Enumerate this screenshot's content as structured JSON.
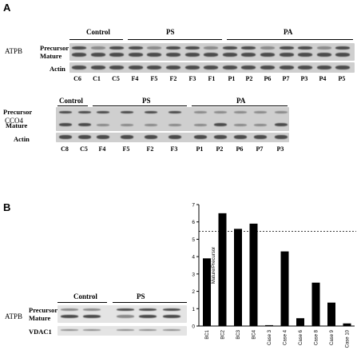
{
  "panels": {
    "a": {
      "letter": "A",
      "atpb": {
        "gene": "ATPB",
        "row_labels": {
          "precursor": "Precursor",
          "mature": "Mature",
          "actin": "Actin"
        },
        "groups": {
          "control": "Control",
          "ps": "PS",
          "pa": "PA"
        },
        "lanes": [
          "C6",
          "C1",
          "C5",
          "F4",
          "F5",
          "F2",
          "F3",
          "F1",
          "P1",
          "P2",
          "P6",
          "P7",
          "P3",
          "P4",
          "P5"
        ]
      },
      "cco4": {
        "gene": "CCO4",
        "row_labels": {
          "precursor": "Precursor",
          "mature": "Mature",
          "actin": "Actin"
        },
        "groups": {
          "control": "Control",
          "ps": "PS",
          "pa": "PA"
        },
        "lanes": [
          "C8",
          "C5",
          "F4",
          "F5",
          "F2",
          "F3",
          "P1",
          "P2",
          "P6",
          "P7",
          "P3"
        ]
      }
    },
    "b": {
      "letter": "B",
      "blot": {
        "gene": "ATPB",
        "row_labels": {
          "precursor": "Precursor",
          "mature": "Mature",
          "vdac": "VDAC1"
        },
        "groups": {
          "control": "Control",
          "ps": "PS"
        }
      }
    }
  },
  "chart_data": {
    "type": "bar",
    "ylabel": "Mature/Precursor",
    "categories": [
      "BC1",
      "BC2",
      "BC3",
      "BC4",
      "Case 3",
      "Case 4",
      "Case 6",
      "Case 8",
      "Case 9",
      "Case 10"
    ],
    "values": [
      3.9,
      6.5,
      5.6,
      5.9,
      0.05,
      4.3,
      0.45,
      2.5,
      1.35,
      0.15
    ],
    "ylim": [
      0,
      7
    ],
    "yticks": [
      "0",
      "1",
      "2",
      "3",
      "4",
      "5",
      "6",
      "7"
    ],
    "reference_line": 5.45
  }
}
